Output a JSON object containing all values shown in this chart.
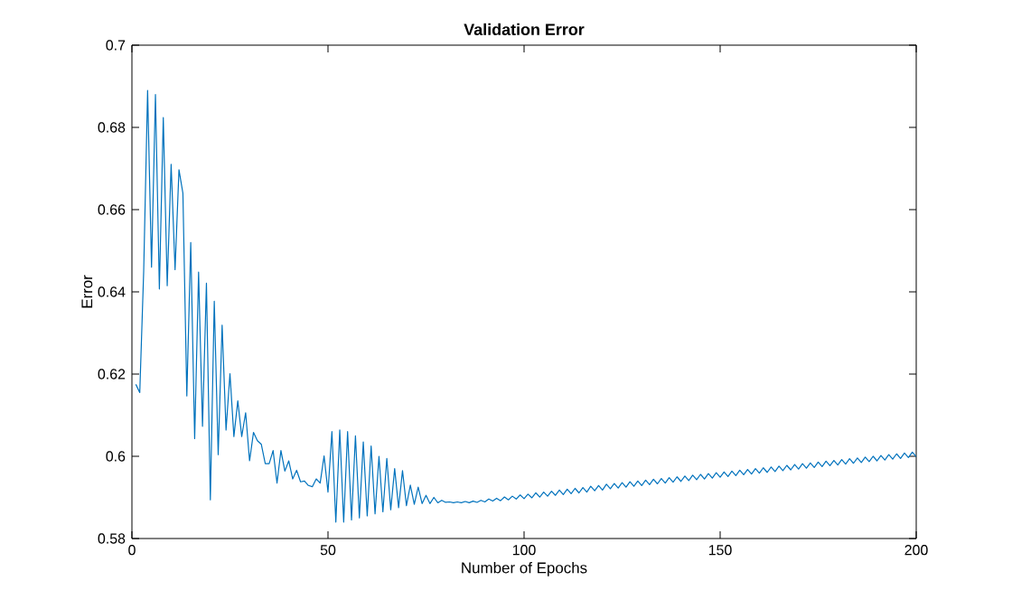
{
  "chart_data": {
    "type": "line",
    "title": "**Validation Error**",
    "xlabel": "Number of Epochs",
    "ylabel": "Error",
    "xlim": [
      0,
      200
    ],
    "ylim": [
      0.58,
      0.7
    ],
    "xticks": [
      0,
      50,
      100,
      150,
      200
    ],
    "yticks": [
      0.58,
      0.6,
      0.62,
      0.64,
      0.66,
      0.68,
      0.7
    ],
    "grid": false,
    "series": [
      {
        "color": "#0072bd",
        "x": [
          1,
          2,
          3,
          4,
          5,
          6,
          7,
          8,
          9,
          10,
          11,
          12,
          13,
          14,
          15,
          16,
          17,
          18,
          19,
          20,
          21,
          22,
          23,
          24,
          25,
          26,
          27,
          28,
          29,
          30,
          31,
          32,
          33,
          34,
          35,
          36,
          37,
          38,
          39,
          40,
          41,
          42,
          43,
          44,
          45,
          46,
          47,
          48,
          49,
          50,
          51,
          52,
          53,
          54,
          55,
          56,
          57,
          58,
          59,
          60,
          61,
          62,
          63,
          64,
          65,
          66,
          67,
          68,
          69,
          70,
          71,
          72,
          73,
          74,
          75,
          76,
          77,
          78,
          79,
          80,
          81,
          82,
          83,
          84,
          85,
          86,
          87,
          88,
          89,
          90,
          91,
          92,
          93,
          94,
          95,
          96,
          97,
          98,
          99,
          100,
          101,
          102,
          103,
          104,
          105,
          106,
          107,
          108,
          109,
          110,
          111,
          112,
          113,
          114,
          115,
          116,
          117,
          118,
          119,
          120,
          121,
          122,
          123,
          124,
          125,
          126,
          127,
          128,
          129,
          130,
          131,
          132,
          133,
          134,
          135,
          136,
          137,
          138,
          139,
          140,
          141,
          142,
          143,
          144,
          145,
          146,
          147,
          148,
          149,
          150,
          151,
          152,
          153,
          154,
          155,
          156,
          157,
          158,
          159,
          160,
          161,
          162,
          163,
          164,
          165,
          166,
          167,
          168,
          169,
          170,
          171,
          172,
          173,
          174,
          175,
          176,
          177,
          178,
          179,
          180,
          181,
          182,
          183,
          184,
          185,
          186,
          187,
          188,
          189,
          190,
          191,
          192,
          193,
          194,
          195,
          196,
          197,
          198,
          199,
          200
        ],
        "values": [
          0.6175,
          0.6155,
          0.645,
          0.689,
          0.646,
          0.688,
          0.6407,
          0.6824,
          0.6415,
          0.671,
          0.6454,
          0.6697,
          0.664,
          0.6147,
          0.652,
          0.6043,
          0.6448,
          0.6073,
          0.6421,
          0.5894,
          0.6377,
          0.6004,
          0.6319,
          0.6064,
          0.6201,
          0.6048,
          0.6135,
          0.6048,
          0.6106,
          0.5989,
          0.6058,
          0.6038,
          0.6029,
          0.5982,
          0.5982,
          0.6014,
          0.5935,
          0.6014,
          0.5964,
          0.5989,
          0.5945,
          0.5966,
          0.5938,
          0.594,
          0.5929,
          0.5926,
          0.5945,
          0.5935,
          0.6001,
          0.5913,
          0.606,
          0.584,
          0.6064,
          0.584,
          0.606,
          0.5845,
          0.605,
          0.585,
          0.6035,
          0.5855,
          0.6025,
          0.586,
          0.6,
          0.5865,
          0.5995,
          0.587,
          0.597,
          0.5875,
          0.5965,
          0.588,
          0.593,
          0.5883,
          0.5925,
          0.5885,
          0.5905,
          0.5885,
          0.59,
          0.5887,
          0.5893,
          0.5888,
          0.5889,
          0.5887,
          0.5889,
          0.5887,
          0.589,
          0.5887,
          0.5891,
          0.5888,
          0.5893,
          0.5889,
          0.5896,
          0.5891,
          0.5898,
          0.5892,
          0.5901,
          0.5894,
          0.5903,
          0.5896,
          0.5906,
          0.5897,
          0.5908,
          0.5899,
          0.5911,
          0.5901,
          0.5913,
          0.5903,
          0.5915,
          0.5905,
          0.5918,
          0.5907,
          0.592,
          0.5909,
          0.5922,
          0.5911,
          0.5924,
          0.5913,
          0.5927,
          0.5916,
          0.5929,
          0.5918,
          0.5932,
          0.5921,
          0.5934,
          0.5923,
          0.5936,
          0.5925,
          0.5938,
          0.5927,
          0.594,
          0.5929,
          0.5942,
          0.5931,
          0.5944,
          0.5933,
          0.5946,
          0.5935,
          0.5948,
          0.5937,
          0.595,
          0.5939,
          0.5952,
          0.5941,
          0.5954,
          0.5943,
          0.5956,
          0.5945,
          0.5958,
          0.5947,
          0.596,
          0.5949,
          0.5962,
          0.5951,
          0.5964,
          0.5953,
          0.5966,
          0.5955,
          0.5968,
          0.5957,
          0.597,
          0.5959,
          0.5972,
          0.5961,
          0.5974,
          0.5963,
          0.5976,
          0.5965,
          0.5978,
          0.5967,
          0.598,
          0.5969,
          0.5982,
          0.5971,
          0.5984,
          0.5973,
          0.5986,
          0.5975,
          0.5988,
          0.5977,
          0.599,
          0.5979,
          0.5992,
          0.5981,
          0.5994,
          0.5983,
          0.5996,
          0.5985,
          0.5998,
          0.5987,
          0.6,
          0.5989,
          0.6002,
          0.5991,
          0.6004,
          0.5993,
          0.6006,
          0.5995,
          0.6008,
          0.5997,
          0.601,
          0.5999
        ]
      }
    ]
  }
}
